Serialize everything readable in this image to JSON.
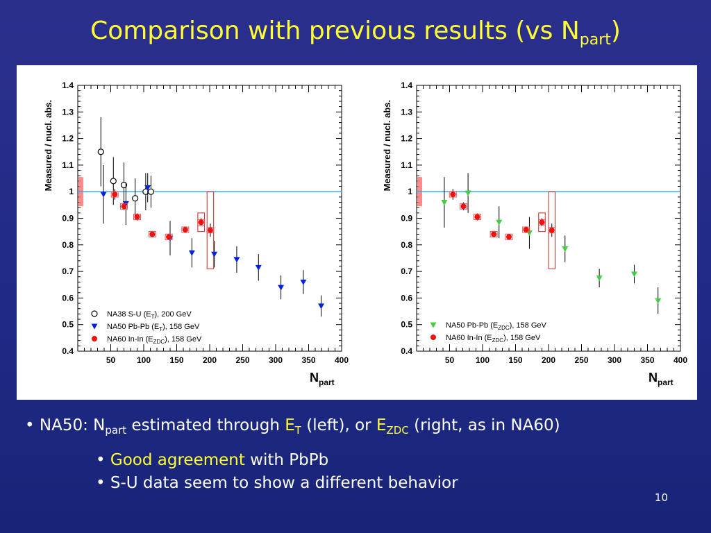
{
  "slide": {
    "title_main": "Comparison with previous results (vs N",
    "title_sub": "part",
    "title_close": ")",
    "page_number": "10"
  },
  "bullets": {
    "main": {
      "prefix": "• NA50: N",
      "prefix_sub": "part",
      "mid": " estimated through ",
      "et": "E",
      "et_sub": "T",
      "mid2": " (left), or ",
      "ezdc": "E",
      "ezdc_sub": "ZDC",
      "suffix": " (right, as in NA60)"
    },
    "sub": [
      {
        "bullet": "• ",
        "highlight": "Good agreement",
        "text": " with PbPb"
      },
      {
        "bullet": "• ",
        "highlight": "",
        "text": "S-U data seem to show a different behavior"
      }
    ]
  },
  "colors": {
    "title": "#ffff33",
    "reference_line": "#33aaee",
    "na50": "#0022dd",
    "na50_zdc": "#44cc44",
    "na60": "#ee1111",
    "syst_box": "#cc2222"
  },
  "chart_data": [
    {
      "type": "scatter",
      "title": "",
      "xlabel": "N",
      "xlabel_sub": "part",
      "ylabel": "Measured / nucl. abs.",
      "xlim": [
        0,
        400
      ],
      "ylim": [
        0.4,
        1.4
      ],
      "xticks": [
        50,
        100,
        150,
        200,
        250,
        300,
        350,
        400
      ],
      "yticks": [
        0.4,
        0.5,
        0.6,
        0.7,
        0.8,
        0.9,
        1.0,
        1.1,
        1.2,
        1.3,
        1.4
      ],
      "yticklabels": [
        "0.4",
        "0.5",
        "0.6",
        "0.7",
        "0.8",
        "0.9",
        "1",
        "1.1",
        "1.2",
        "1.3",
        "1.4"
      ],
      "reference_line": 1.0,
      "norm_uncertainty": [
        0.945,
        1.055
      ],
      "legend": [
        {
          "key": "na38",
          "text": "NA38 S-U (E",
          "sub": "T",
          "tail": "), 200 GeV"
        },
        {
          "key": "na50",
          "text": "NA50 Pb-Pb (E",
          "sub": "T",
          "tail": "), 158 GeV"
        },
        {
          "key": "na60",
          "text": "NA60 In-In (E",
          "sub": "ZDC",
          "tail": "), 158 GeV"
        }
      ],
      "series": [
        {
          "key": "na38",
          "marker": "open-circle",
          "color": "#000000",
          "x": [
            35,
            54,
            70,
            87,
            103,
            111
          ],
          "y": [
            1.15,
            1.04,
            1.025,
            0.975,
            1.0,
            1.0
          ],
          "err": [
            0.13,
            0.09,
            0.085,
            0.075,
            0.07,
            0.06
          ]
        },
        {
          "key": "na50",
          "marker": "down-triangle",
          "color": "#0022dd",
          "x": [
            39,
            73,
            106,
            140,
            173,
            207,
            241,
            274,
            308,
            342,
            369
          ],
          "y": [
            0.99,
            0.955,
            1.015,
            0.825,
            0.77,
            0.765,
            0.745,
            0.715,
            0.64,
            0.66,
            0.57
          ],
          "err": [
            0.11,
            0.08,
            0.055,
            0.065,
            0.055,
            0.05,
            0.05,
            0.05,
            0.045,
            0.045,
            0.04
          ]
        },
        {
          "key": "na60",
          "marker": "filled-circle",
          "color": "#ee1111",
          "x": [
            56,
            70,
            90,
            113,
            138,
            163,
            187,
            201
          ],
          "y": [
            0.99,
            0.945,
            0.905,
            0.84,
            0.83,
            0.857,
            0.885,
            0.855
          ],
          "err": [
            0.02,
            0.015,
            0.013,
            0.012,
            0.012,
            0.012,
            0.015,
            0.025
          ]
        }
      ],
      "syst_boxes": [
        {
          "x": 187,
          "ylow": 0.85,
          "yhigh": 0.92,
          "halfwidth": 5
        },
        {
          "x": 201,
          "ylow": 0.71,
          "yhigh": 1.0,
          "halfwidth": 5
        }
      ]
    },
    {
      "type": "scatter",
      "title": "",
      "xlabel": "N",
      "xlabel_sub": "part",
      "ylabel": "Measured / nucl. abs.",
      "xlim": [
        0,
        400
      ],
      "ylim": [
        0.4,
        1.4
      ],
      "xticks": [
        50,
        100,
        150,
        200,
        250,
        300,
        350,
        400
      ],
      "yticks": [
        0.4,
        0.5,
        0.6,
        0.7,
        0.8,
        0.9,
        1.0,
        1.1,
        1.2,
        1.3,
        1.4
      ],
      "yticklabels": [
        "0.4",
        "0.5",
        "0.6",
        "0.7",
        "0.8",
        "0.9",
        "1",
        "1.1",
        "1.2",
        "1.3",
        "1.4"
      ],
      "reference_line": 1.0,
      "norm_uncertainty": [
        0.945,
        1.055
      ],
      "legend": [
        {
          "key": "na50",
          "text": "NA50 Pb-Pb (E",
          "sub": "ZDC",
          "tail": "), 158 GeV"
        },
        {
          "key": "na60",
          "text": "NA60 In-In (E",
          "sub": "ZDC",
          "tail": "), 158 GeV"
        }
      ],
      "series": [
        {
          "key": "na50",
          "marker": "down-triangle",
          "color": "#44cc44",
          "x": [
            42,
            78,
            125,
            171,
            225,
            277,
            330,
            366
          ],
          "y": [
            0.96,
            0.995,
            0.885,
            0.845,
            0.785,
            0.675,
            0.69,
            0.59
          ],
          "err": [
            0.095,
            0.075,
            0.06,
            0.06,
            0.05,
            0.035,
            0.035,
            0.05
          ]
        },
        {
          "key": "na60",
          "marker": "filled-circle",
          "color": "#ee1111",
          "x": [
            55,
            71,
            92,
            117,
            140,
            166,
            190,
            205
          ],
          "y": [
            0.99,
            0.945,
            0.905,
            0.84,
            0.83,
            0.857,
            0.885,
            0.855
          ],
          "err": [
            0.02,
            0.015,
            0.013,
            0.012,
            0.012,
            0.012,
            0.015,
            0.025
          ]
        }
      ],
      "syst_boxes": [
        {
          "x": 190,
          "ylow": 0.85,
          "yhigh": 0.92,
          "halfwidth": 5
        },
        {
          "x": 205,
          "ylow": 0.71,
          "yhigh": 1.0,
          "halfwidth": 5
        }
      ]
    }
  ]
}
